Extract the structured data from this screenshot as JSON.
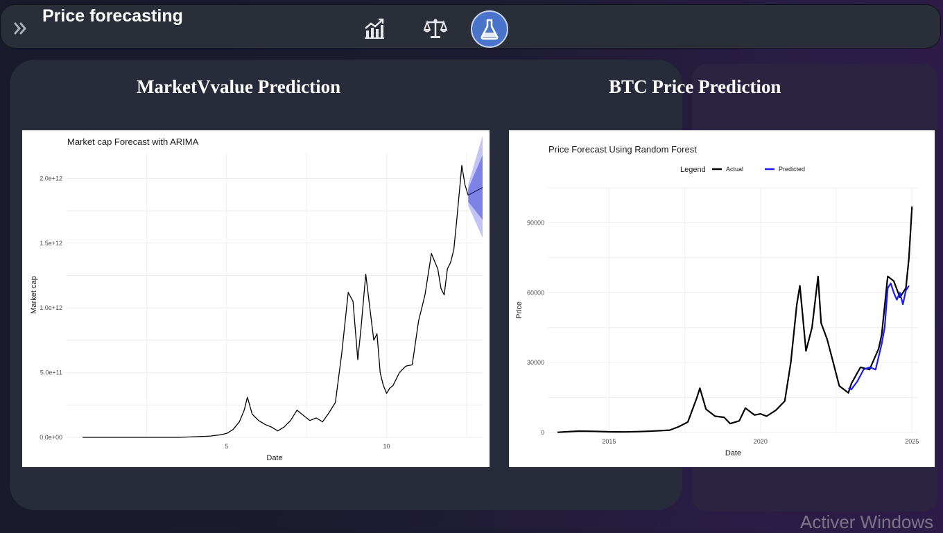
{
  "header": {
    "title": "Price forecasting",
    "nav_icons": [
      "chart-growth-icon",
      "balance-scale-icon",
      "flask-icon"
    ],
    "active_nav": "flask-icon",
    "accent_color": "#4a74c9"
  },
  "sections": {
    "left_title": "MarketVvalue Prediction",
    "right_title": "BTC Price Prediction"
  },
  "chart_data": [
    {
      "type": "line",
      "title": "Market cap Forecast with ARIMA",
      "xlabel": "Date",
      "ylabel": "Market cap",
      "xlim": [
        0,
        13
      ],
      "ylim": [
        0,
        2200000000000.0
      ],
      "xticks": [
        5,
        10
      ],
      "xtick_labels": [
        "5",
        "10"
      ],
      "yticks": [
        0,
        500000000000.0,
        1000000000000.0,
        1500000000000.0,
        2000000000000.0
      ],
      "ytick_labels": [
        "0.0e+00",
        "5.0e+11",
        "1.0e+12",
        "1.5e+12",
        "2.0e+12"
      ],
      "grid": true,
      "series": [
        {
          "color": "#000000",
          "x": [
            0.5,
            1.0,
            1.5,
            2.0,
            2.5,
            3.0,
            3.5,
            4.0,
            4.5,
            4.8,
            5.0,
            5.2,
            5.4,
            5.55,
            5.65,
            5.8,
            6.0,
            6.2,
            6.4,
            6.6,
            6.8,
            7.0,
            7.2,
            7.4,
            7.6,
            7.8,
            8.0,
            8.2,
            8.4,
            8.6,
            8.8,
            8.95,
            9.1,
            9.2,
            9.35,
            9.5,
            9.6,
            9.7,
            9.8,
            9.9,
            10.0,
            10.1,
            10.2,
            10.4,
            10.6,
            10.8,
            11.0,
            11.2,
            11.4,
            11.6,
            11.7,
            11.8,
            11.9,
            12.0,
            12.1,
            12.2,
            12.35,
            12.45,
            12.55
          ],
          "y": [
            0,
            0,
            0,
            0,
            0,
            0,
            0,
            5000000000.0,
            10000000000.0,
            20000000000.0,
            30000000000.0,
            60000000000.0,
            120000000000.0,
            210000000000.0,
            310000000000.0,
            180000000000.0,
            130000000000.0,
            100000000000.0,
            80000000000.0,
            50000000000.0,
            80000000000.0,
            130000000000.0,
            210000000000.0,
            170000000000.0,
            130000000000.0,
            150000000000.0,
            120000000000.0,
            190000000000.0,
            270000000000.0,
            650000000000.0,
            1120000000000.0,
            1050000000000.0,
            600000000000.0,
            840000000000.0,
            1260000000000.0,
            950000000000.0,
            750000000000.0,
            800000000000.0,
            500000000000.0,
            400000000000.0,
            340000000000.0,
            380000000000.0,
            400000000000.0,
            500000000000.0,
            550000000000.0,
            560000000000.0,
            900000000000.0,
            1100000000000.0,
            1420000000000.0,
            1300000000000.0,
            1150000000000.0,
            1100000000000.0,
            1300000000000.0,
            1350000000000.0,
            1450000000000.0,
            1700000000000.0,
            2100000000000.0,
            1950000000000.0,
            1870000000000.0
          ]
        }
      ],
      "forecast": {
        "x": [
          12.55,
          13.0
        ],
        "mean": [
          1870000000000.0,
          1930000000000.0
        ],
        "lower80": [
          1820000000000.0,
          1680000000000.0
        ],
        "upper80": [
          1920000000000.0,
          2180000000000.0
        ],
        "lower95": [
          1790000000000.0,
          1540000000000.0
        ],
        "upper95": [
          1950000000000.0,
          2330000000000.0
        ],
        "color_80": "#7d82e6",
        "color_95": "#c2c4f5"
      }
    },
    {
      "type": "line",
      "title": "Price Forecast Using Random Forest",
      "xlabel": "Date",
      "ylabel": "Price",
      "xlim": [
        2013.0,
        2025.2
      ],
      "ylim": [
        0,
        105000
      ],
      "xticks": [
        2015,
        2020,
        2025
      ],
      "xtick_labels": [
        "2015",
        "2020",
        "2025"
      ],
      "yticks": [
        0,
        30000,
        60000,
        90000
      ],
      "ytick_labels": [
        "0",
        "30000",
        "60000",
        "90000"
      ],
      "grid": true,
      "legend": {
        "title": "Legend",
        "position": "top",
        "entries": [
          "Actual",
          "Predicted"
        ]
      },
      "series": [
        {
          "name": "Actual",
          "color": "#000000",
          "x": [
            2013.3,
            2014.0,
            2014.5,
            2015.0,
            2015.5,
            2016.0,
            2016.5,
            2017.0,
            2017.3,
            2017.6,
            2017.9,
            2018.0,
            2018.2,
            2018.5,
            2018.8,
            2019.0,
            2019.3,
            2019.5,
            2019.8,
            2020.0,
            2020.2,
            2020.5,
            2020.8,
            2021.0,
            2021.2,
            2021.3,
            2021.5,
            2021.7,
            2021.9,
            2022.0,
            2022.2,
            2022.4,
            2022.6,
            2022.9,
            2023.0,
            2023.3,
            2023.6,
            2023.9,
            2024.0,
            2024.2,
            2024.4,
            2024.6,
            2024.8,
            2024.9,
            2025.0
          ],
          "y": [
            100,
            600,
            500,
            300,
            250,
            400,
            650,
            1000,
            2500,
            4500,
            15000,
            19000,
            10000,
            7000,
            6500,
            3800,
            5000,
            10500,
            7500,
            8000,
            7000,
            9500,
            13500,
            30000,
            55000,
            63000,
            35000,
            45000,
            67000,
            47000,
            40000,
            30000,
            20000,
            17000,
            21000,
            28000,
            27000,
            36000,
            42000,
            67000,
            65000,
            58000,
            62000,
            75000,
            97000
          ]
        },
        {
          "name": "Predicted",
          "color": "#1a1aff",
          "x": [
            2022.9,
            2023.0,
            2023.2,
            2023.4,
            2023.6,
            2023.8,
            2024.0,
            2024.1,
            2024.2,
            2024.3,
            2024.4,
            2024.5,
            2024.6,
            2024.7,
            2024.8,
            2024.9
          ],
          "y": [
            19000,
            18500,
            22000,
            27000,
            28000,
            27000,
            38000,
            45000,
            62000,
            64000,
            60000,
            57000,
            60000,
            55000,
            61000,
            63000
          ]
        }
      ]
    }
  ],
  "watermark": "Activer Windows"
}
